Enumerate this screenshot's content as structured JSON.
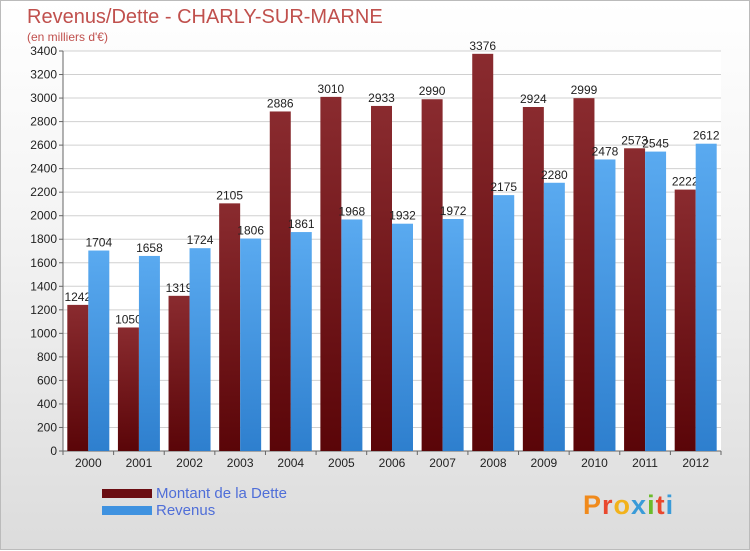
{
  "header": {
    "title": "Revenus/Dette - CHARLY-SUR-MARNE",
    "subtitle": "(en milliers d'€)"
  },
  "colors": {
    "dette": "#6b0d12",
    "revenus": "#3f92e0",
    "title": "#c0504d",
    "legend_text": "#4f6ed8"
  },
  "legend": {
    "dette_label": "Montant de la Dette",
    "revenus_label": "Revenus"
  },
  "logo": {
    "text": "Proxiti"
  },
  "chart_data": {
    "type": "bar",
    "title": "Revenus/Dette - CHARLY-SUR-MARNE",
    "subtitle": "(en milliers d'€)",
    "categories": [
      "2000",
      "2001",
      "2002",
      "2003",
      "2004",
      "2005",
      "2006",
      "2007",
      "2008",
      "2009",
      "2010",
      "2011",
      "2012"
    ],
    "series": [
      {
        "name": "Montant de la Dette",
        "values": [
          1242,
          1050,
          1319,
          2105,
          2886,
          3010,
          2933,
          2990,
          3376,
          2924,
          2999,
          2573,
          2222
        ],
        "labels": [
          "1242",
          "1050",
          "1319",
          "2105",
          "2886",
          "3010",
          "2933",
          "2990",
          "3376",
          "2924",
          "2999",
          "2573",
          "2222"
        ]
      },
      {
        "name": "Revenus",
        "values": [
          1704,
          1658,
          1724,
          1806,
          1861,
          1968,
          1932,
          1972,
          2175,
          2280,
          2478,
          2545,
          2612
        ],
        "labels": [
          "1704",
          "1658",
          "1724",
          "1806",
          "1861",
          "1968",
          "1932",
          "1972",
          "2175",
          "2280",
          "2478",
          "2545",
          "2612"
        ]
      }
    ],
    "ylim": [
      0,
      3400
    ],
    "yticks": [
      "0",
      "200",
      "400",
      "600",
      "800",
      "1000",
      "1200",
      "1400",
      "1600",
      "1800",
      "2000",
      "2200",
      "2400",
      "2600",
      "2800",
      "3000",
      "3200",
      "3400"
    ],
    "grid": true,
    "legend_position": "bottom-left"
  }
}
